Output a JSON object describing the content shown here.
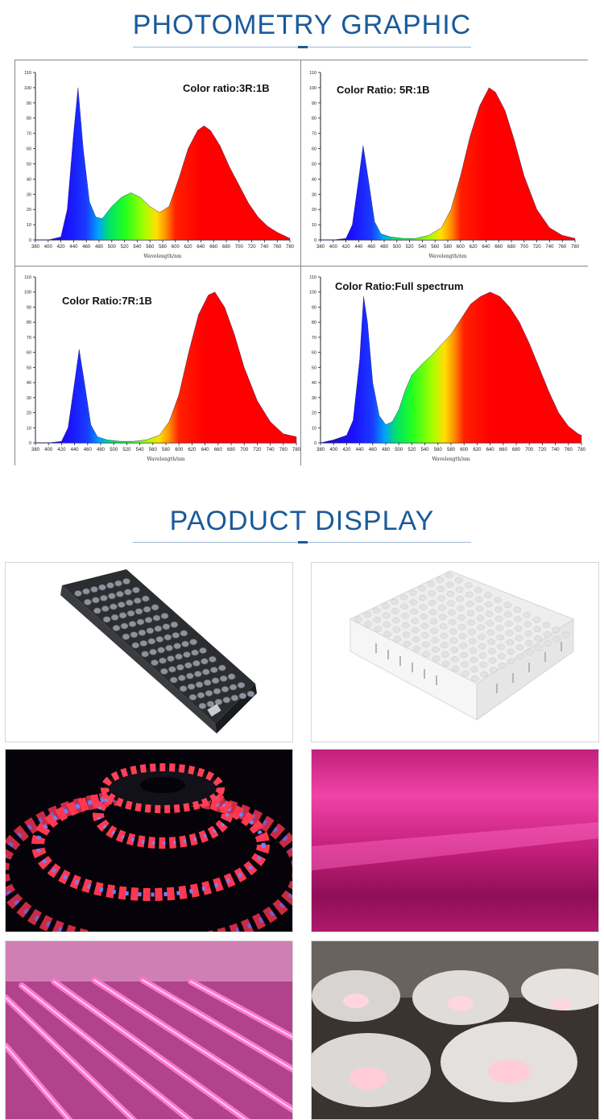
{
  "sections": {
    "photometry_title": "PHOTOMETRY GRAPHIC",
    "display_title": "PAODUCT DISPLAY"
  },
  "chart_data": [
    {
      "type": "area",
      "title": "Color ratio:3R:1B",
      "xlabel": "Wavelength/nm",
      "ylabel": "",
      "xlim": [
        380,
        780
      ],
      "ylim": [
        0,
        110
      ],
      "x_ticks": [
        380,
        400,
        420,
        440,
        460,
        480,
        500,
        520,
        540,
        560,
        580,
        600,
        620,
        640,
        660,
        680,
        700,
        720,
        740,
        760,
        780
      ],
      "y_ticks": [
        0,
        10,
        20,
        30,
        40,
        50,
        60,
        70,
        80,
        90,
        100,
        110
      ],
      "grid": false,
      "x": [
        380,
        400,
        420,
        430,
        440,
        447,
        455,
        465,
        475,
        485,
        500,
        515,
        530,
        545,
        560,
        575,
        590,
        605,
        620,
        635,
        645,
        655,
        670,
        685,
        700,
        715,
        730,
        745,
        760,
        775,
        780
      ],
      "values": [
        0,
        0,
        2,
        20,
        70,
        100,
        60,
        25,
        15,
        14,
        22,
        28,
        31,
        28,
        22,
        18,
        22,
        40,
        60,
        72,
        75,
        72,
        62,
        48,
        36,
        24,
        15,
        9,
        5,
        2,
        1
      ]
    },
    {
      "type": "area",
      "title": "Color Ratio: 5R:1B",
      "xlabel": "Wavelength/nm",
      "ylabel": "",
      "xlim": [
        380,
        780
      ],
      "ylim": [
        0,
        110
      ],
      "x_ticks": [
        380,
        400,
        420,
        440,
        460,
        480,
        500,
        520,
        540,
        560,
        580,
        600,
        620,
        640,
        660,
        680,
        700,
        720,
        740,
        760,
        780
      ],
      "y_ticks": [
        0,
        10,
        20,
        30,
        40,
        50,
        60,
        70,
        80,
        90,
        100,
        110
      ],
      "grid": false,
      "x": [
        380,
        400,
        420,
        430,
        440,
        447,
        455,
        465,
        475,
        490,
        510,
        530,
        550,
        570,
        585,
        600,
        615,
        630,
        645,
        655,
        670,
        685,
        700,
        720,
        740,
        760,
        780
      ],
      "values": [
        0,
        0,
        1,
        10,
        40,
        62,
        40,
        12,
        4,
        2,
        1,
        1,
        3,
        8,
        20,
        42,
        68,
        88,
        100,
        97,
        85,
        65,
        42,
        20,
        8,
        3,
        1
      ]
    },
    {
      "type": "area",
      "title": "Color Ratio:7R:1B",
      "xlabel": "Wavelength/nm",
      "ylabel": "",
      "xlim": [
        380,
        780
      ],
      "ylim": [
        0,
        110
      ],
      "x_ticks": [
        380,
        400,
        420,
        440,
        460,
        480,
        500,
        520,
        540,
        560,
        580,
        600,
        620,
        640,
        660,
        680,
        700,
        720,
        740,
        760,
        780
      ],
      "y_ticks": [
        0,
        10,
        20,
        30,
        40,
        50,
        60,
        70,
        80,
        90,
        100,
        110
      ],
      "grid": false,
      "x": [
        380,
        400,
        420,
        430,
        440,
        447,
        455,
        465,
        475,
        490,
        510,
        530,
        550,
        570,
        585,
        600,
        615,
        630,
        645,
        655,
        670,
        685,
        700,
        720,
        740,
        760,
        780
      ],
      "values": [
        0,
        0,
        1,
        10,
        40,
        62,
        40,
        12,
        4,
        2,
        1,
        1,
        2,
        5,
        14,
        32,
        60,
        85,
        98,
        100,
        90,
        72,
        50,
        28,
        14,
        6,
        4
      ]
    },
    {
      "type": "area",
      "title": "Color Ratio:Full spectrum",
      "xlabel": "Wavelength/nm",
      "ylabel": "",
      "xlim": [
        380,
        780
      ],
      "ylim": [
        0,
        110
      ],
      "x_ticks": [
        380,
        400,
        420,
        440,
        460,
        480,
        500,
        520,
        540,
        560,
        580,
        600,
        620,
        640,
        660,
        680,
        700,
        720,
        740,
        760,
        780
      ],
      "y_ticks": [
        0,
        10,
        20,
        30,
        40,
        50,
        60,
        70,
        80,
        90,
        100,
        110
      ],
      "grid": false,
      "x": [
        380,
        400,
        420,
        430,
        440,
        446,
        452,
        460,
        470,
        480,
        490,
        500,
        510,
        520,
        535,
        550,
        565,
        580,
        595,
        610,
        625,
        640,
        655,
        670,
        685,
        700,
        715,
        730,
        745,
        760,
        775,
        780
      ],
      "values": [
        0,
        2,
        5,
        15,
        55,
        97,
        80,
        40,
        18,
        12,
        14,
        22,
        35,
        45,
        52,
        58,
        65,
        72,
        82,
        92,
        97,
        100,
        97,
        90,
        80,
        66,
        50,
        34,
        20,
        11,
        6,
        5
      ]
    }
  ],
  "photos": [
    "rectangular-led-grow-panel",
    "square-led-grow-panel",
    "red-blue-led-strip-reel",
    "pink-grow-light-glow",
    "led-grow-tube-rows",
    "ufo-high-bay-lamps"
  ]
}
